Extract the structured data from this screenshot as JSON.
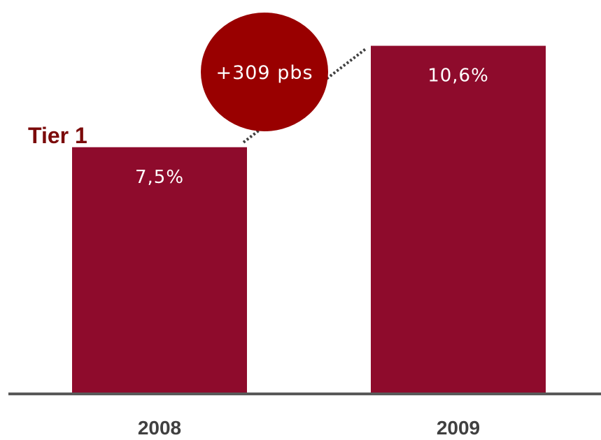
{
  "chart_data": {
    "type": "bar",
    "title": "Tier 1",
    "categories": [
      "2008",
      "2009"
    ],
    "values": [
      7.5,
      10.6
    ],
    "data_labels": [
      "7,5%",
      "10,6%"
    ],
    "unit": "%",
    "ylim": [
      0,
      12
    ],
    "grid": false,
    "legend": "none",
    "annotation": {
      "text": "+309 pbs",
      "from_category": "2008",
      "to_category": "2009"
    }
  },
  "colors": {
    "bar": "#8E0B2C",
    "callout": "#990000",
    "title": "#7B0A0A",
    "axis": "#595959",
    "connector": "#404040"
  }
}
